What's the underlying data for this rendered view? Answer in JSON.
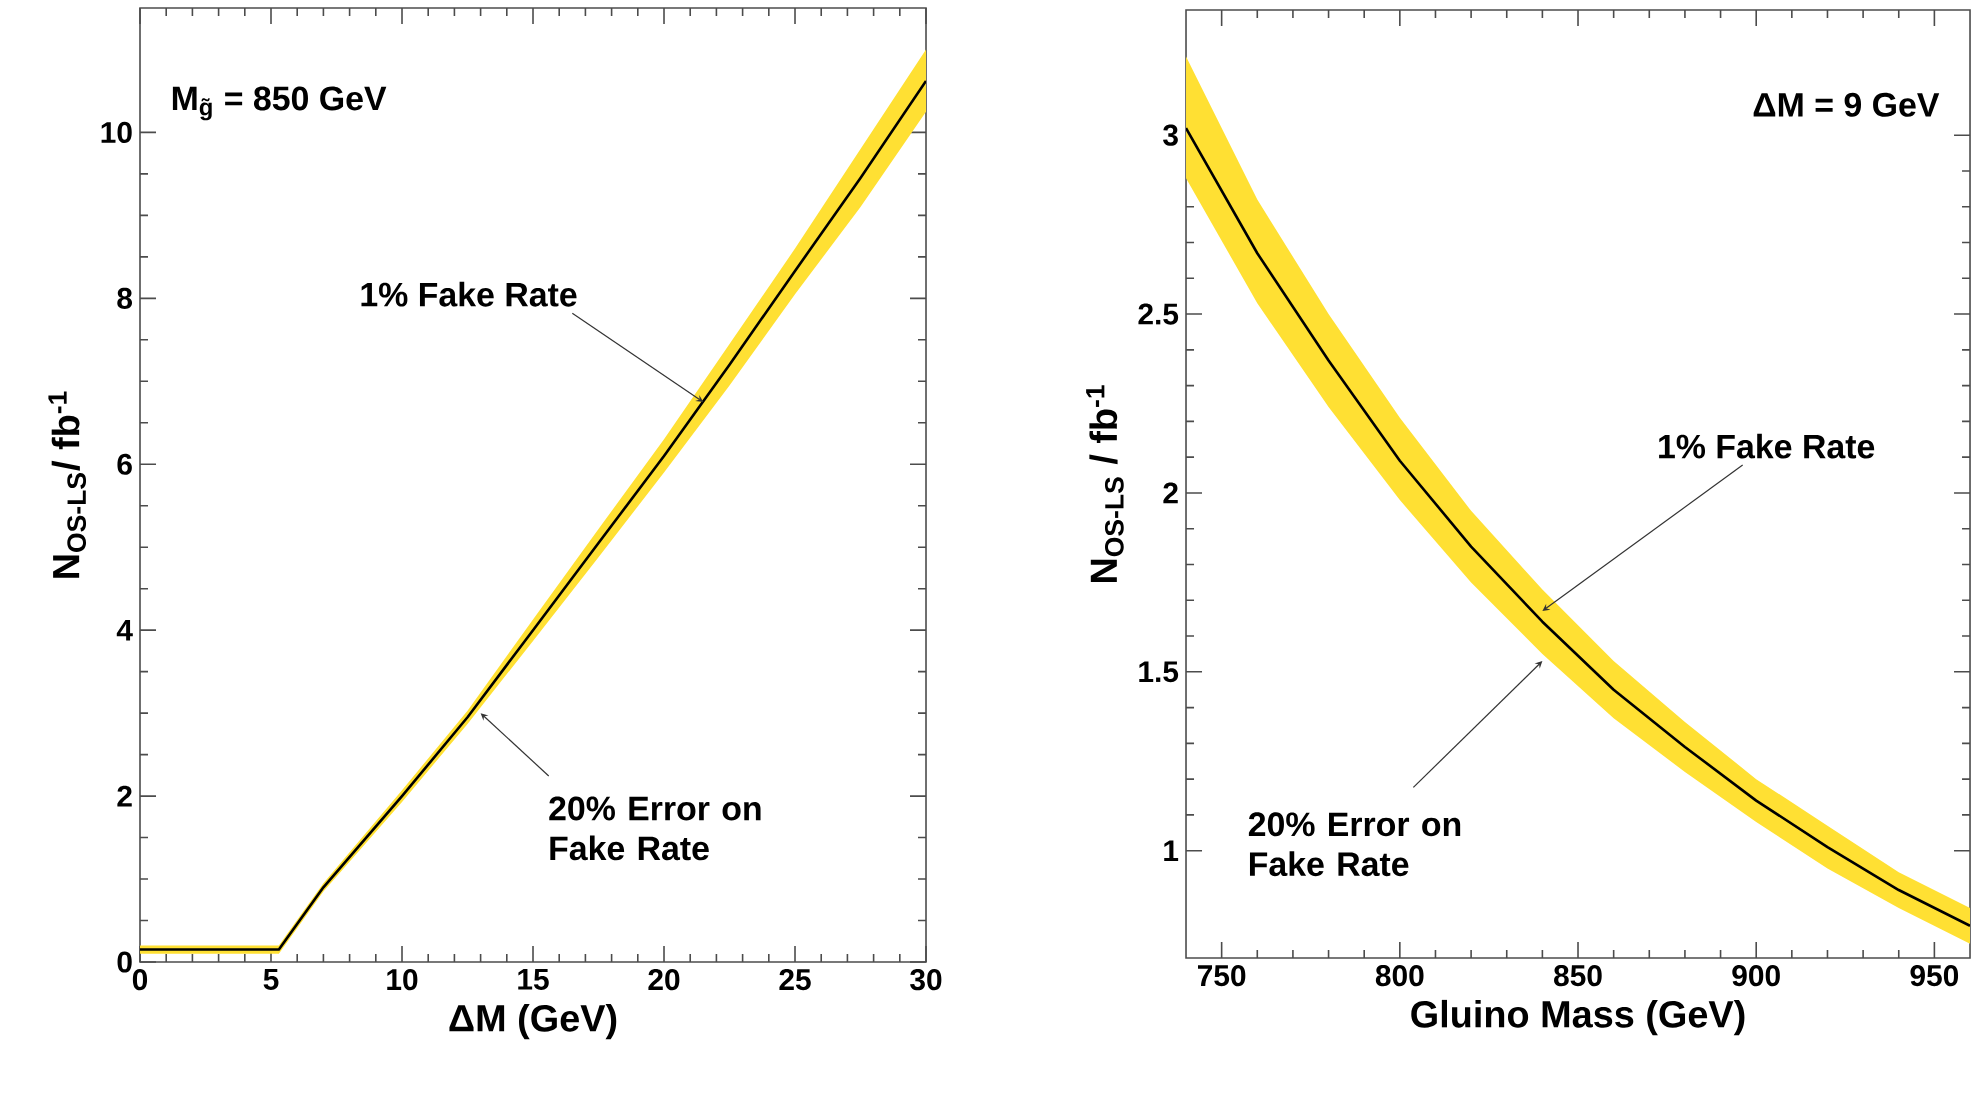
{
  "chart_data": [
    {
      "type": "line",
      "xlabel": "ΔM (GeV)",
      "ylabel": "N$_{OS-LS}$/ fb$^{-1}$",
      "xlim": [
        0,
        30
      ],
      "ylim": [
        0,
        11.5
      ],
      "xticks": [
        0,
        5,
        10,
        15,
        20,
        25,
        30
      ],
      "yticks": [
        0,
        2,
        4,
        6,
        8,
        10
      ],
      "series": [
        {
          "color": "#000000",
          "x": [
            0,
            5,
            5.3,
            7,
            10,
            12.5,
            15,
            17.5,
            20,
            22.5,
            25,
            27.5,
            30
          ],
          "values": [
            0.15,
            0.15,
            0.15,
            0.9,
            2.0,
            2.95,
            4.0,
            5.05,
            6.1,
            7.2,
            8.33,
            9.45,
            10.62
          ],
          "lower": [
            0.1,
            0.1,
            0.1,
            0.85,
            1.93,
            2.87,
            3.87,
            4.88,
            5.9,
            6.95,
            8.05,
            9.1,
            10.25
          ],
          "upper": [
            0.2,
            0.2,
            0.2,
            0.95,
            2.07,
            3.03,
            4.13,
            5.22,
            6.3,
            7.45,
            8.6,
            9.8,
            11.0
          ]
        }
      ],
      "annotations": [
        "M$_{g̃}$ = 850 GeV",
        {
          "text": "1% Fake Rate",
          "x": 21.5,
          "y": 6.75
        },
        {
          "text": "20% Error on Fake Rate",
          "x": 13,
          "y": 3.0
        }
      ]
    },
    {
      "type": "line",
      "xlabel": "Gluino Mass (GeV)",
      "ylabel": "N$_{OS-LS}$ / fb$^{-1}$",
      "xlim": [
        740,
        960
      ],
      "ylim": [
        0.7,
        3.35
      ],
      "xticks": [
        750,
        800,
        850,
        900,
        950
      ],
      "yticks": [
        1,
        1.5,
        2,
        2.5,
        3
      ],
      "series": [
        {
          "color": "#000000",
          "x": [
            740,
            760,
            780,
            800,
            820,
            840,
            860,
            880,
            900,
            920,
            940,
            960
          ],
          "values": [
            3.02,
            2.67,
            2.37,
            2.09,
            1.85,
            1.64,
            1.45,
            1.29,
            1.14,
            1.01,
            0.89,
            0.79
          ],
          "lower": [
            2.88,
            2.53,
            2.24,
            1.98,
            1.75,
            1.55,
            1.37,
            1.22,
            1.08,
            0.95,
            0.84,
            0.74
          ],
          "upper": [
            3.22,
            2.82,
            2.5,
            2.21,
            1.95,
            1.73,
            1.53,
            1.36,
            1.2,
            1.07,
            0.94,
            0.84
          ]
        }
      ],
      "annotations": [
        "ΔM = 9 GeV",
        {
          "text": "1% Fake Rate",
          "x": 840,
          "y": 1.67
        },
        {
          "text": "20% Error on Fake Rate",
          "x": 840,
          "y": 1.53
        }
      ]
    }
  ]
}
